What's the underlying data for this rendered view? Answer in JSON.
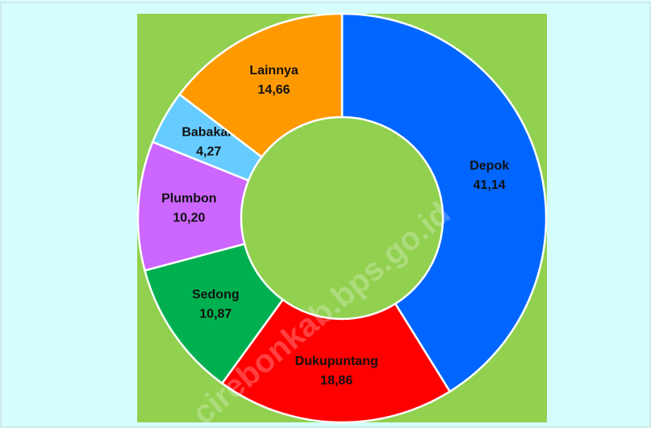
{
  "chart_data": {
    "type": "donut",
    "categories": [
      "Depok",
      "Dukupuntang",
      "Sedong",
      "Plumbon",
      "Babakan",
      "Lainnya"
    ],
    "values": [
      41.14,
      18.86,
      10.87,
      10.2,
      4.27,
      14.66
    ],
    "value_labels": [
      "41,14",
      "18,86",
      "10,87",
      "10,20",
      "4,27",
      "14,66"
    ],
    "colors": [
      "#0066ff",
      "#ff0000",
      "#00b050",
      "#cc66ff",
      "#66ccff",
      "#ff9900"
    ],
    "watermark": "cirebonkab.bps.go.id"
  }
}
